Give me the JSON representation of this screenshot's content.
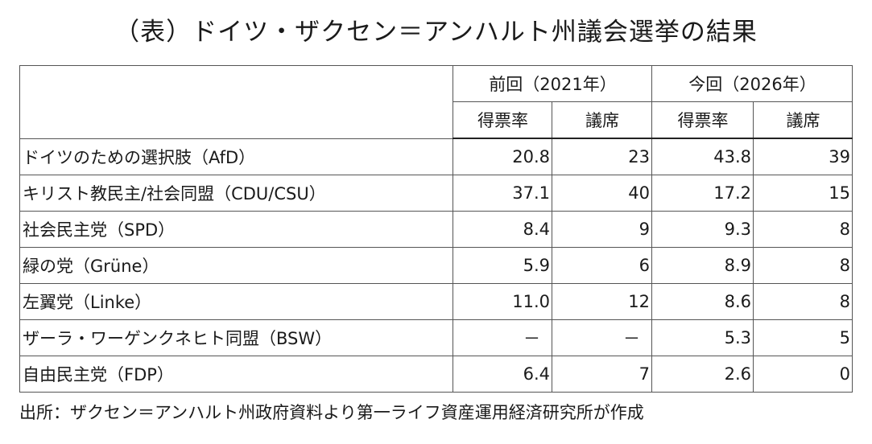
{
  "title": "（表）ドイツ・ザクセン＝アンハルト州議会選挙の結果",
  "table": {
    "period_headers": [
      "前回（2021年）",
      "今回（2026年）"
    ],
    "sub_headers": [
      "得票率",
      "議席",
      "得票率",
      "議席"
    ],
    "rows": [
      {
        "party": "ドイツのための選択肢（AfD）",
        "prev_vote": "20.8",
        "prev_seats": "23",
        "curr_vote": "43.8",
        "curr_seats": "39"
      },
      {
        "party": "キリスト教民主/社会同盟（CDU/CSU）",
        "prev_vote": "37.1",
        "prev_seats": "40",
        "curr_vote": "17.2",
        "curr_seats": "15"
      },
      {
        "party": "社会民主党（SPD）",
        "prev_vote": "8.4",
        "prev_seats": "9",
        "curr_vote": "9.3",
        "curr_seats": "8"
      },
      {
        "party": "緑の党（Grüne）",
        "prev_vote": "5.9",
        "prev_seats": "6",
        "curr_vote": "8.9",
        "curr_seats": "8"
      },
      {
        "party": "左翼党（Linke）",
        "prev_vote": "11.0",
        "prev_seats": "12",
        "curr_vote": "8.6",
        "curr_seats": "8"
      },
      {
        "party": "ザーラ・ワーゲンクネヒト同盟（BSW）",
        "prev_vote": "－",
        "prev_seats": "－",
        "curr_vote": "5.3",
        "curr_seats": "5"
      },
      {
        "party": "自由民主党（FDP）",
        "prev_vote": "6.4",
        "prev_seats": "7",
        "curr_vote": "2.6",
        "curr_seats": "0"
      }
    ]
  },
  "source": "出所：ザクセン＝アンハルト州政府資料より第一ライフ資産運用経済研究所が作成"
}
